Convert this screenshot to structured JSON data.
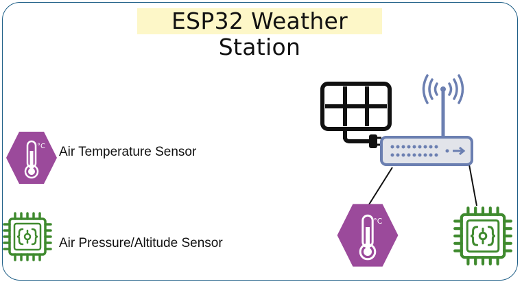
{
  "title": "ESP32 Weather Station",
  "legend": [
    {
      "label": "Air Temperature Sensor",
      "icon": "thermometer-icon"
    },
    {
      "label": "Air Pressure/Altitude Sensor",
      "icon": "chip-icon"
    }
  ],
  "colors": {
    "border": "#1f5f87",
    "title_bg": "#fdf7c8",
    "thermo_purple": "#9b4a9b",
    "chip_green": "#3f8a2e",
    "router_blue": "#6b7fb1",
    "router_fill": "#e2e4ea"
  },
  "diagram": {
    "components": [
      "solar-panel",
      "wifi-router",
      "temperature-sensor",
      "pressure-altitude-sensor"
    ],
    "thermo_unit": "°C"
  }
}
